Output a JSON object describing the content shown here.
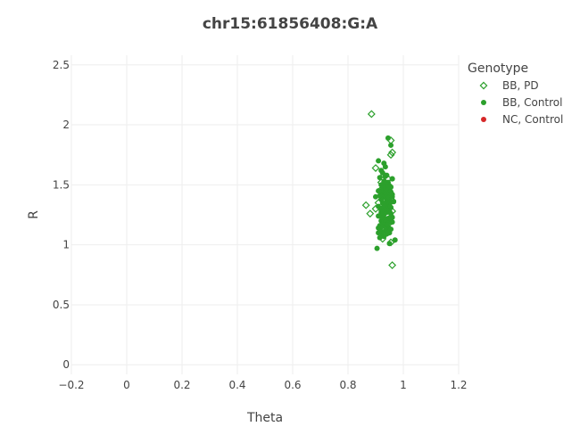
{
  "chart_data": {
    "type": "scatter",
    "title": "chr15:61856408:G:A",
    "xlabel": "Theta",
    "ylabel": "R",
    "xlim": [
      -0.2,
      1.2
    ],
    "ylim": [
      -0.08,
      2.58
    ],
    "x_ticks": [
      -0.2,
      0,
      0.2,
      0.4,
      0.6,
      0.8,
      1,
      1.2
    ],
    "x_tick_labels": [
      "−0.2",
      "0",
      "0.2",
      "0.4",
      "0.6",
      "0.8",
      "1",
      "1.2"
    ],
    "y_ticks": [
      0,
      0.5,
      1,
      1.5,
      2,
      2.5
    ],
    "y_tick_labels": [
      "0",
      "0.5",
      "1",
      "1.5",
      "2",
      "2.5"
    ],
    "grid": true,
    "legend_title": "Genotype",
    "legend_position": "top-right",
    "series": [
      {
        "name": "BB, PD",
        "marker": "diamond-open",
        "color": "#2ca02c",
        "x": [
          0.885,
          0.955,
          0.96,
          0.955,
          0.9,
          0.93,
          0.945,
          0.92,
          0.95,
          0.94,
          0.915,
          0.935,
          0.955,
          0.945,
          0.93,
          0.96,
          0.865,
          0.88,
          0.9,
          0.925,
          0.94,
          0.955,
          0.935,
          0.945,
          0.92,
          0.93,
          0.91,
          0.95,
          0.96,
          0.94,
          0.925,
          0.955,
          0.96
        ],
        "y": [
          2.09,
          1.87,
          1.77,
          1.75,
          1.64,
          1.58,
          1.55,
          1.52,
          1.49,
          1.47,
          1.45,
          1.43,
          1.42,
          1.4,
          1.38,
          1.37,
          1.33,
          1.26,
          1.3,
          1.28,
          1.25,
          1.22,
          1.2,
          1.17,
          1.15,
          1.13,
          1.35,
          1.32,
          1.28,
          1.1,
          1.05,
          1.02,
          0.83
        ]
      },
      {
        "name": "BB, Control",
        "marker": "circle",
        "color": "#2ca02c",
        "x": [
          0.945,
          0.955,
          0.91,
          0.93,
          0.935,
          0.92,
          0.97,
          0.905,
          0.95,
          0.925,
          0.94,
          0.915,
          0.96,
          0.93,
          0.945,
          0.92,
          0.935,
          0.95,
          0.925,
          0.94,
          0.91,
          0.955,
          0.93,
          0.945,
          0.915,
          0.96,
          0.935,
          0.92,
          0.95,
          0.94,
          0.925,
          0.93,
          0.945,
          0.91,
          0.955,
          0.935,
          0.92,
          0.95,
          0.94,
          0.925,
          0.93,
          0.915,
          0.96,
          0.945,
          0.935,
          0.92,
          0.95,
          0.94,
          0.925,
          0.93,
          0.945,
          0.91,
          0.955,
          0.935,
          0.92,
          0.95,
          0.94,
          0.925,
          0.93,
          0.915,
          0.96,
          0.945,
          0.935,
          0.92,
          0.95,
          0.94,
          0.925,
          0.93,
          0.945,
          0.91,
          0.955,
          0.935,
          0.92,
          0.95,
          0.94,
          0.925,
          0.93,
          0.915,
          0.96,
          0.945,
          0.935,
          0.92,
          0.95,
          0.94,
          0.93,
          0.965,
          0.9,
          0.945,
          0.925,
          0.955,
          0.94,
          0.915,
          0.935,
          0.95,
          0.93,
          0.92,
          0.945,
          0.96,
          0.91,
          0.94
        ],
        "y": [
          1.89,
          1.83,
          1.7,
          1.68,
          1.65,
          1.62,
          1.04,
          0.97,
          1.01,
          1.6,
          1.58,
          1.56,
          1.55,
          1.53,
          1.52,
          1.5,
          1.49,
          1.48,
          1.47,
          1.46,
          1.45,
          1.44,
          1.43,
          1.42,
          1.41,
          1.4,
          1.39,
          1.38,
          1.37,
          1.36,
          1.35,
          1.34,
          1.33,
          1.32,
          1.31,
          1.3,
          1.29,
          1.28,
          1.27,
          1.26,
          1.25,
          1.24,
          1.23,
          1.22,
          1.21,
          1.2,
          1.19,
          1.18,
          1.17,
          1.16,
          1.15,
          1.14,
          1.13,
          1.12,
          1.11,
          1.1,
          1.09,
          1.08,
          1.07,
          1.06,
          1.55,
          1.5,
          1.45,
          1.4,
          1.35,
          1.3,
          1.25,
          1.2,
          1.15,
          1.1,
          1.48,
          1.43,
          1.38,
          1.33,
          1.28,
          1.23,
          1.18,
          1.13,
          1.42,
          1.37,
          1.32,
          1.27,
          1.22,
          1.17,
          1.52,
          1.36,
          1.4,
          1.46,
          1.31,
          1.26,
          1.21,
          1.16,
          1.57,
          1.34,
          1.29,
          1.44,
          1.39,
          1.19,
          1.24,
          1.12
        ]
      },
      {
        "name": "NC, Control",
        "marker": "circle",
        "color": "#d62728",
        "x": [],
        "y": []
      }
    ]
  }
}
